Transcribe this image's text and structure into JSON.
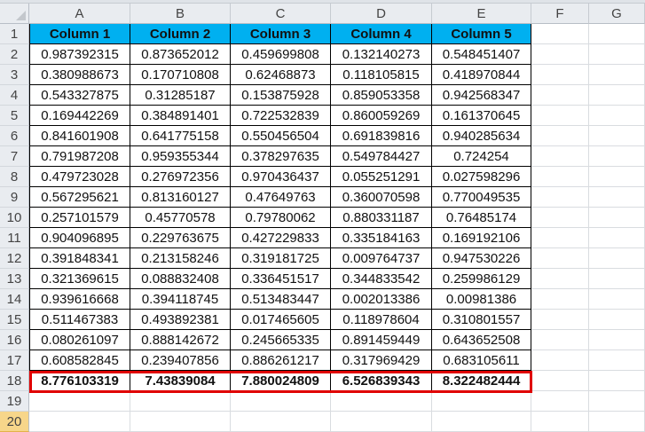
{
  "column_headers": [
    "A",
    "B",
    "C",
    "D",
    "E",
    "F",
    "G"
  ],
  "row_numbers": [
    "1",
    "2",
    "3",
    "4",
    "5",
    "6",
    "7",
    "8",
    "9",
    "10",
    "11",
    "12",
    "13",
    "14",
    "15",
    "16",
    "17",
    "18",
    "19",
    "20"
  ],
  "table": {
    "headers": [
      "Column 1",
      "Column 2",
      "Column 3",
      "Column 4",
      "Column 5"
    ],
    "header_color": "#00b0f0",
    "rows": [
      [
        "0.987392315",
        "0.873652012",
        "0.459699808",
        "0.132140273",
        "0.548451407"
      ],
      [
        "0.380988673",
        "0.170710808",
        "0.62468873",
        "0.118105815",
        "0.418970844"
      ],
      [
        "0.543327875",
        "0.31285187",
        "0.153875928",
        "0.859053358",
        "0.942568347"
      ],
      [
        "0.169442269",
        "0.384891401",
        "0.722532839",
        "0.860059269",
        "0.161370645"
      ],
      [
        "0.841601908",
        "0.641775158",
        "0.550456504",
        "0.691839816",
        "0.940285634"
      ],
      [
        "0.791987208",
        "0.959355344",
        "0.378297635",
        "0.549784427",
        "0.724254"
      ],
      [
        "0.479723028",
        "0.276972356",
        "0.970436437",
        "0.055251291",
        "0.027598296"
      ],
      [
        "0.567295621",
        "0.813160127",
        "0.47649763",
        "0.360070598",
        "0.770049535"
      ],
      [
        "0.257101579",
        "0.45770578",
        "0.79780062",
        "0.880331187",
        "0.76485174"
      ],
      [
        "0.904096895",
        "0.229763675",
        "0.427229833",
        "0.335184163",
        "0.169192106"
      ],
      [
        "0.391848341",
        "0.213158246",
        "0.319181725",
        "0.009764737",
        "0.947530226"
      ],
      [
        "0.321369615",
        "0.088832408",
        "0.336451517",
        "0.344833542",
        "0.259986129"
      ],
      [
        "0.939616668",
        "0.394118745",
        "0.513483447",
        "0.002013386",
        "0.00981386"
      ],
      [
        "0.511467383",
        "0.493892381",
        "0.017465605",
        "0.118978604",
        "0.310801557"
      ],
      [
        "0.080261097",
        "0.888142672",
        "0.245665335",
        "0.891459449",
        "0.643652508"
      ],
      [
        "0.608582845",
        "0.239407856",
        "0.886261217",
        "0.317969429",
        "0.683105611"
      ]
    ],
    "totals": [
      "8.776103319",
      "7.43839084",
      "7.880024809",
      "6.526839343",
      "8.322482444"
    ],
    "totals_highlight_color": "#e00000"
  },
  "selected_row": "20"
}
